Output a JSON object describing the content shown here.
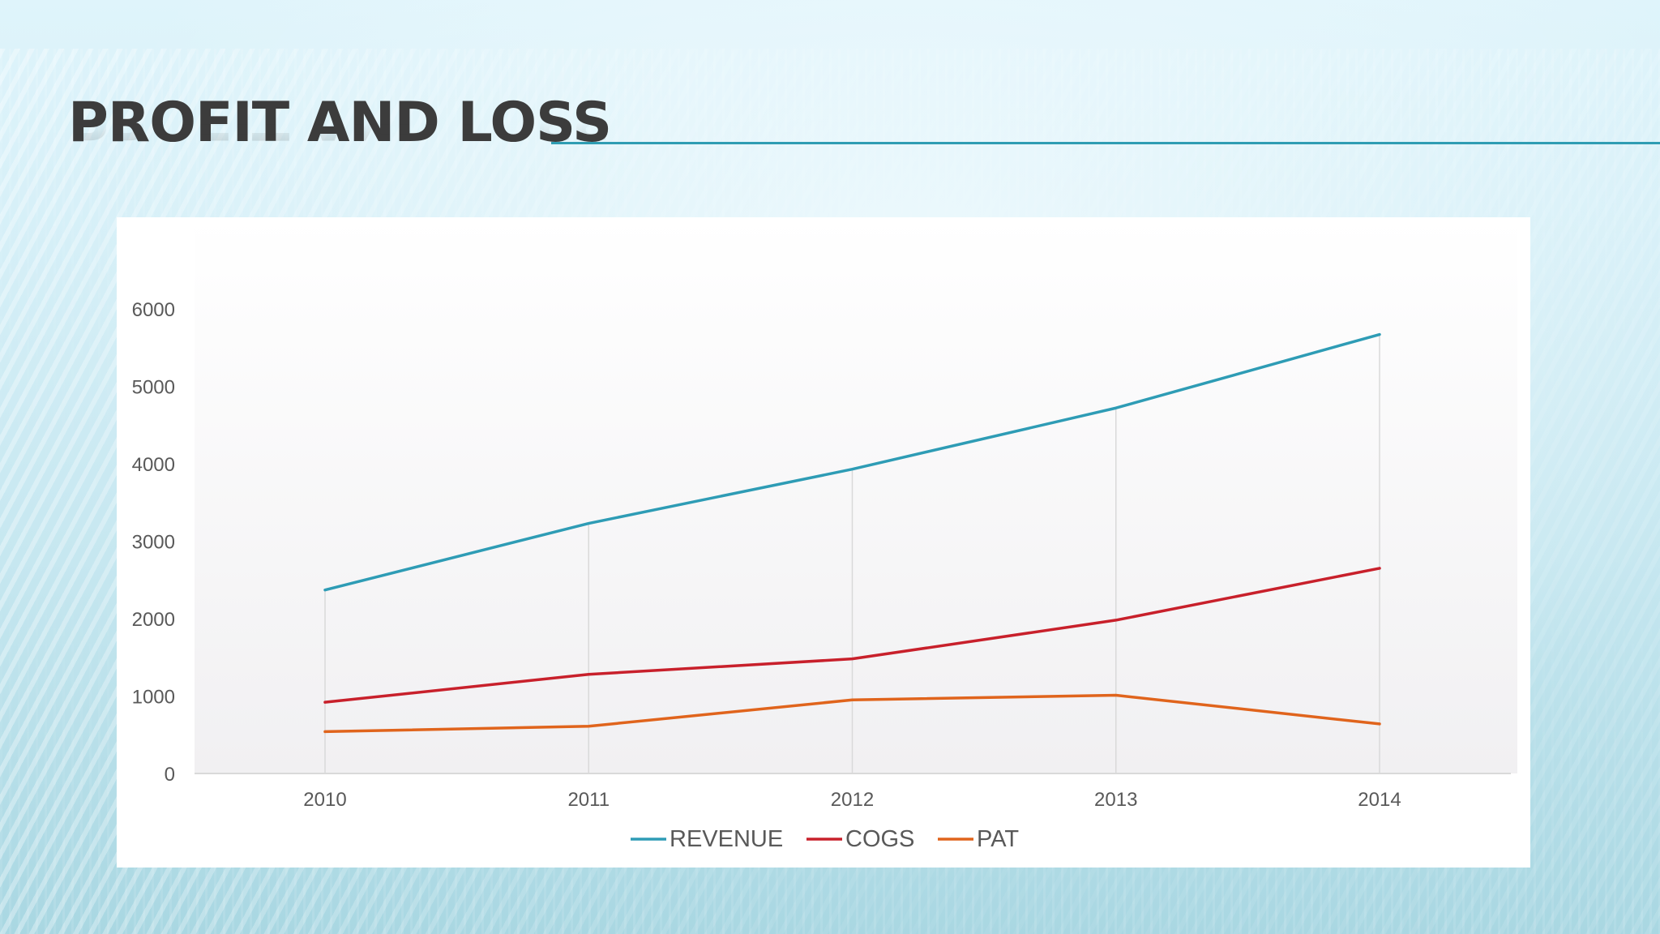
{
  "slide": {
    "title": "PROFIT AND LOSS"
  },
  "chart_data": {
    "type": "line",
    "title": "",
    "xlabel": "",
    "ylabel": "",
    "categories": [
      "2010",
      "2011",
      "2012",
      "2013",
      "2014"
    ],
    "series": [
      {
        "name": "REVENUE",
        "color": "#2e9cb5",
        "values": [
          2370,
          3230,
          3930,
          4720,
          5670
        ]
      },
      {
        "name": "COGS",
        "color": "#c8202b",
        "values": [
          920,
          1280,
          1480,
          1980,
          2650
        ]
      },
      {
        "name": "PAT",
        "color": "#e0641c",
        "values": [
          540,
          610,
          950,
          1010,
          640
        ]
      }
    ],
    "ylim": [
      0,
      6000
    ],
    "yticks": [
      "0",
      "1000",
      "2000",
      "3000",
      "4000",
      "5000",
      "6000"
    ],
    "grid": "vertical lines at categories",
    "legend": "bottom-center",
    "plot_background": "white to light gray vertical gradient"
  }
}
